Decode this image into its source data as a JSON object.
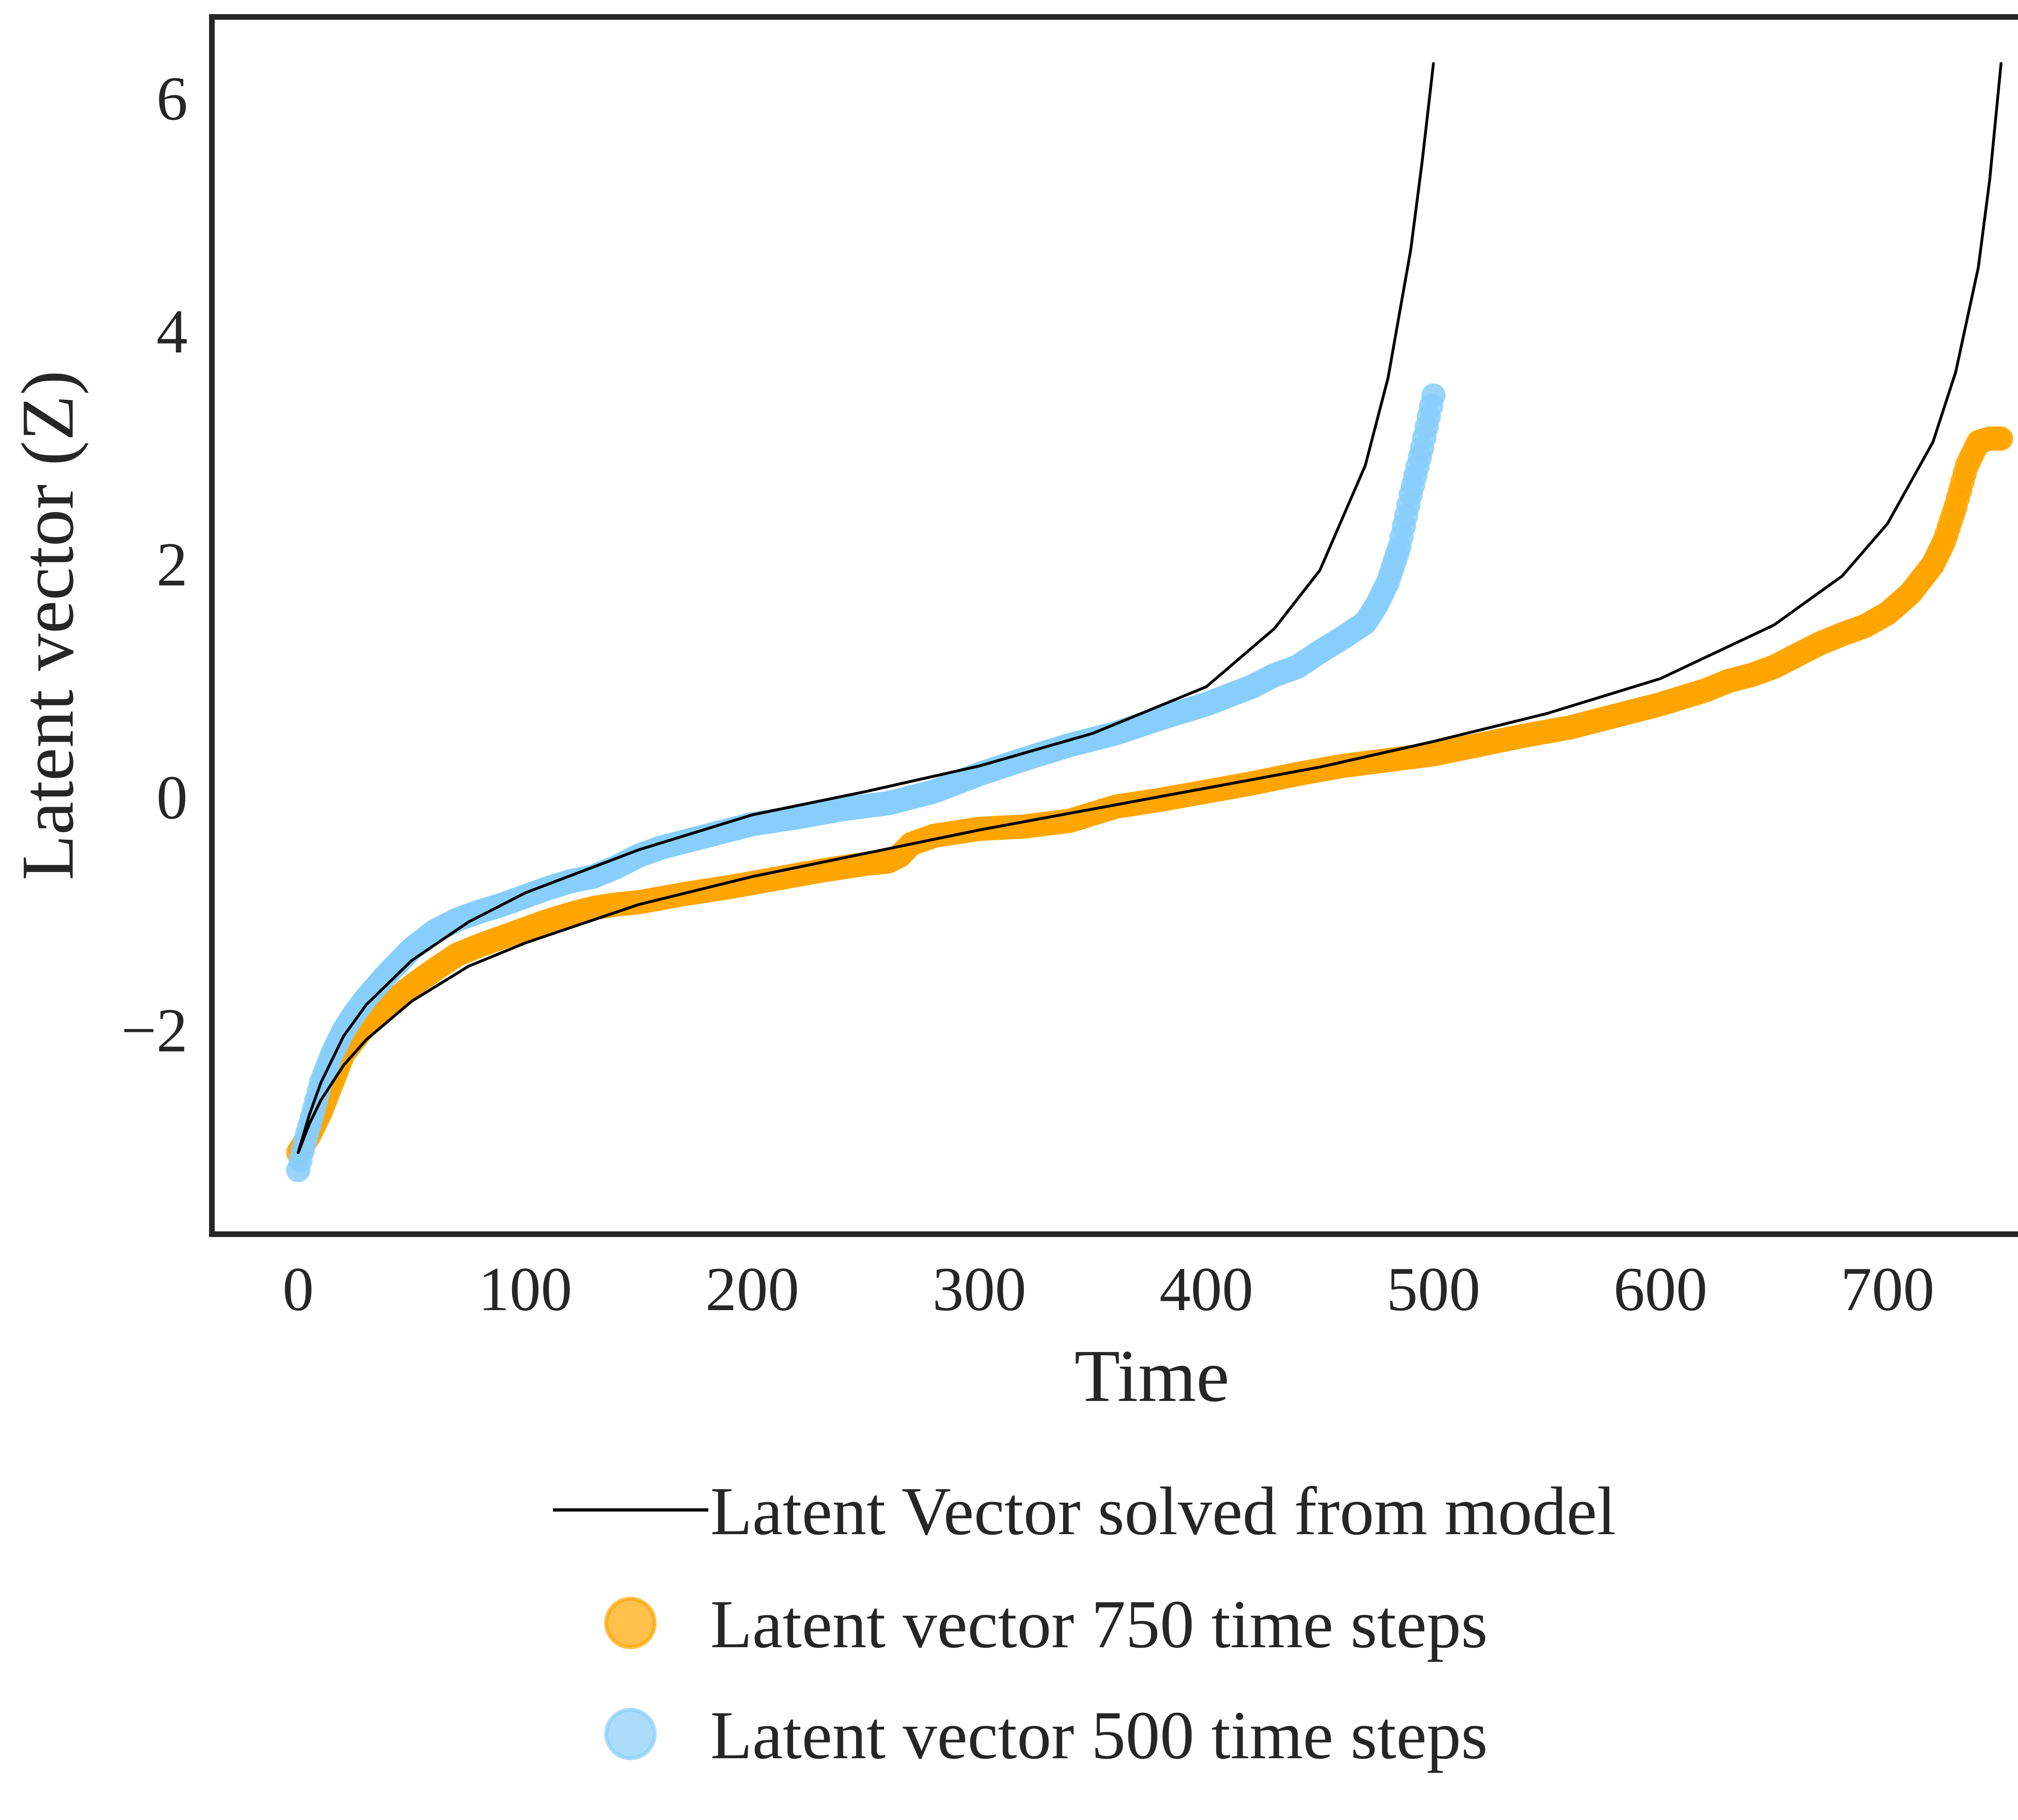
{
  "chart_data": {
    "type": "line",
    "title": "",
    "xlabel": "Time",
    "ylabel": "Latent vector (Z)",
    "xlim": [
      -38,
      790
    ],
    "ylim": [
      -3.75,
      6.7
    ],
    "x_ticks": [
      0,
      100,
      200,
      300,
      400,
      500,
      600,
      700
    ],
    "x_tick_labels": [
      "0",
      "100",
      "200",
      "300",
      "400",
      "500",
      "600",
      "700"
    ],
    "y_ticks": [
      -2,
      0,
      2,
      4,
      6
    ],
    "y_tick_labels": [
      "−2",
      "0",
      "2",
      "4",
      "6"
    ],
    "grid": false,
    "legend_placement": "below",
    "colors": {
      "model": "#000000",
      "steps750": "#ffa500",
      "steps500": "#87cefa",
      "frame": "#262626",
      "text": "#262626"
    },
    "series": [
      {
        "name": "Latent Vector solved from model",
        "kind": "line",
        "color": "#000000",
        "segments": [
          {
            "x": [
              0,
              5,
              10,
              20,
              30,
              50,
              75,
              100,
              150,
              200,
              250,
              300,
              350,
              400,
              430,
              450,
              470,
              480,
              490,
              495,
              500
            ],
            "y": [
              -3.05,
              -2.72,
              -2.45,
              -2.05,
              -1.78,
              -1.4,
              -1.07,
              -0.82,
              -0.45,
              -0.15,
              0.05,
              0.27,
              0.55,
              0.95,
              1.45,
              1.95,
              2.85,
              3.6,
              4.7,
              5.45,
              6.3
            ]
          },
          {
            "x": [
              0,
              5,
              10,
              20,
              30,
              50,
              75,
              100,
              150,
              200,
              250,
              300,
              350,
              400,
              450,
              500,
              550,
              600,
              650,
              680,
              700,
              720,
              730,
              740,
              745,
              750
            ],
            "y": [
              -3.05,
              -2.8,
              -2.6,
              -2.3,
              -2.08,
              -1.75,
              -1.45,
              -1.25,
              -0.92,
              -0.68,
              -0.48,
              -0.28,
              -0.1,
              0.08,
              0.26,
              0.48,
              0.72,
              1.02,
              1.48,
              1.9,
              2.35,
              3.05,
              3.65,
              4.55,
              5.3,
              6.3
            ]
          }
        ]
      },
      {
        "name": "Latent vector 750 time steps",
        "kind": "scatter",
        "color": "#ffa500",
        "x": [
          0,
          5,
          10,
          15,
          20,
          30,
          40,
          50,
          60,
          70,
          80,
          90,
          100,
          110,
          120,
          130,
          140,
          150,
          170,
          190,
          210,
          230,
          250,
          260,
          265,
          270,
          280,
          300,
          320,
          340,
          360,
          380,
          400,
          420,
          440,
          460,
          480,
          500,
          520,
          540,
          560,
          580,
          600,
          620,
          630,
          640,
          650,
          660,
          670,
          680,
          690,
          700,
          710,
          720,
          725,
          730,
          735,
          740,
          745,
          750
        ],
        "y": [
          -3.05,
          -2.9,
          -2.7,
          -2.45,
          -2.2,
          -1.95,
          -1.78,
          -1.62,
          -1.48,
          -1.35,
          -1.27,
          -1.2,
          -1.13,
          -1.06,
          -1.0,
          -0.95,
          -0.92,
          -0.9,
          -0.83,
          -0.77,
          -0.7,
          -0.63,
          -0.57,
          -0.55,
          -0.5,
          -0.4,
          -0.33,
          -0.27,
          -0.25,
          -0.2,
          -0.08,
          -0.02,
          0.05,
          0.12,
          0.2,
          0.27,
          0.32,
          0.37,
          0.45,
          0.53,
          0.6,
          0.7,
          0.8,
          0.92,
          1.0,
          1.05,
          1.12,
          1.22,
          1.32,
          1.4,
          1.47,
          1.58,
          1.75,
          2.0,
          2.2,
          2.5,
          2.85,
          3.05,
          3.08,
          3.08
        ]
      },
      {
        "name": "Latent vector 500 time steps",
        "kind": "scatter",
        "color": "#87cefa",
        "x": [
          0,
          3,
          6,
          10,
          15,
          20,
          25,
          30,
          40,
          50,
          60,
          70,
          80,
          90,
          100,
          110,
          120,
          130,
          140,
          150,
          160,
          180,
          200,
          220,
          240,
          260,
          280,
          300,
          320,
          340,
          360,
          380,
          400,
          420,
          430,
          440,
          450,
          460,
          470,
          475,
          480,
          485,
          490,
          495,
          500
        ],
        "y": [
          -3.2,
          -2.95,
          -2.75,
          -2.45,
          -2.2,
          -2.0,
          -1.85,
          -1.72,
          -1.5,
          -1.3,
          -1.15,
          -1.05,
          -0.98,
          -0.92,
          -0.85,
          -0.78,
          -0.72,
          -0.68,
          -0.6,
          -0.5,
          -0.43,
          -0.33,
          -0.23,
          -0.17,
          -0.1,
          -0.05,
          0.05,
          0.2,
          0.33,
          0.45,
          0.55,
          0.68,
          0.8,
          0.95,
          1.05,
          1.12,
          1.25,
          1.37,
          1.5,
          1.65,
          1.85,
          2.15,
          2.6,
          3.0,
          3.45
        ]
      }
    ]
  }
}
